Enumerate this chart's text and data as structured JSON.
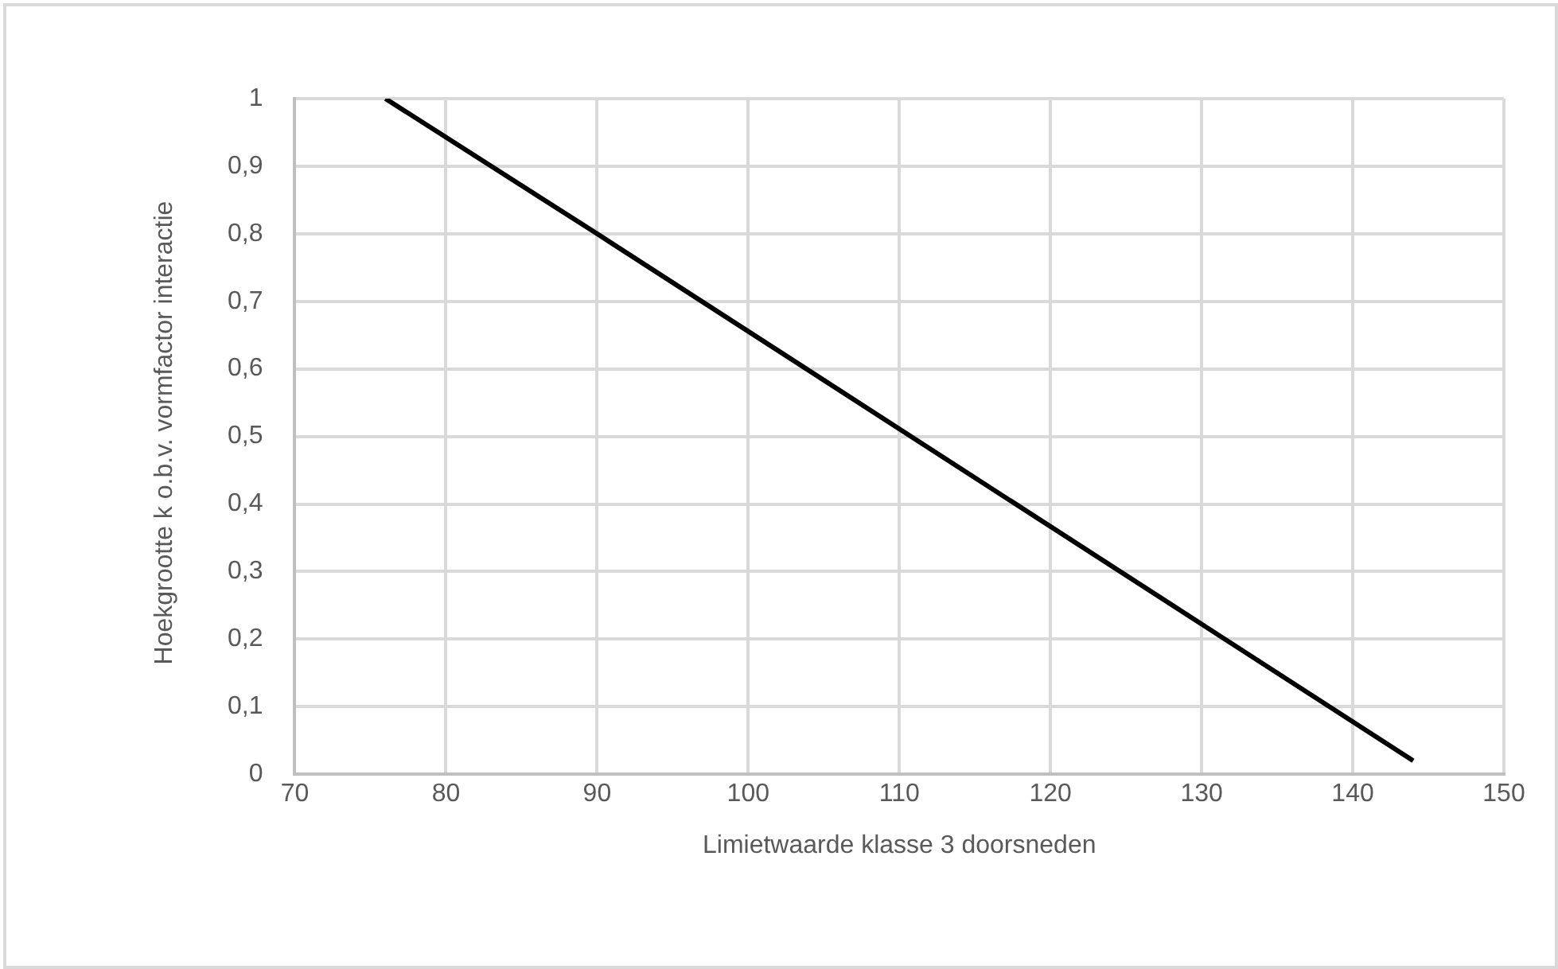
{
  "chart_data": {
    "type": "line",
    "xlabel": "Limietwaarde klasse 3 doorsneden",
    "ylabel": "Hoekgrootte k o.b.v. vormfactor interactie",
    "series": [
      {
        "color": "#000000",
        "x": [
          76,
          90,
          144
        ],
        "values": [
          1,
          0.8,
          0.02
        ]
      }
    ],
    "xlim": [
      70,
      150
    ],
    "xticks": [
      70,
      80,
      90,
      100,
      110,
      120,
      130,
      140,
      150
    ],
    "ylim": [
      0,
      1
    ],
    "yticks": [
      {
        "value": 0,
        "label": "0"
      },
      {
        "value": 0.1,
        "label": "0,1"
      },
      {
        "value": 0.2,
        "label": "0,2"
      },
      {
        "value": 0.3,
        "label": "0,3"
      },
      {
        "value": 0.4,
        "label": "0,4"
      },
      {
        "value": 0.5,
        "label": "0,5"
      },
      {
        "value": 0.6,
        "label": "0,6"
      },
      {
        "value": 0.7,
        "label": "0,7"
      },
      {
        "value": 0.8,
        "label": "0,8"
      },
      {
        "value": 0.9,
        "label": "0,9"
      },
      {
        "value": 1,
        "label": "1"
      }
    ],
    "grid": true,
    "marker": "none",
    "line_style": "solid"
  }
}
